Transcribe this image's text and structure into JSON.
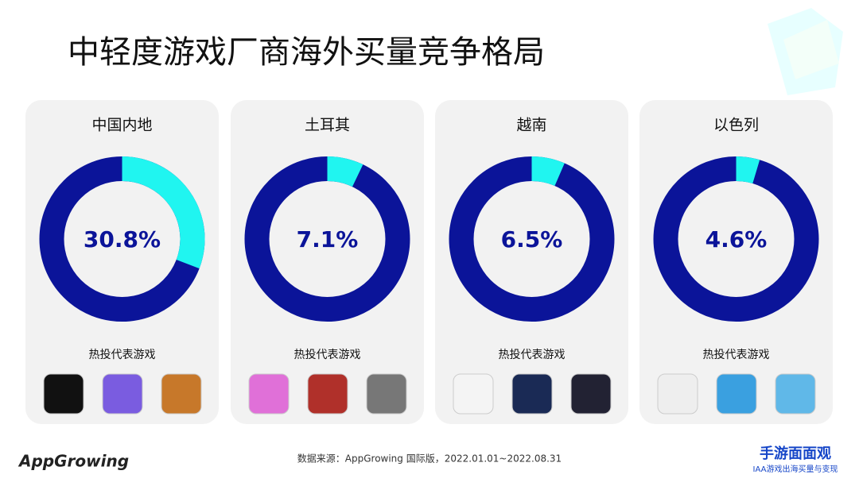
{
  "title": "中轻度游戏厂商海外买量竞争格局",
  "chart_data": [
    {
      "type": "donut",
      "title": "中国内地",
      "values": [
        30.8
      ],
      "value_labels": [
        "30.8%"
      ],
      "color": "#20f5f0",
      "rest_color": "#0b1499",
      "subtitle": "热投代表游戏"
    },
    {
      "type": "donut",
      "title": "土耳其",
      "values": [
        7.1
      ],
      "value_labels": [
        "7.1%"
      ],
      "color": "#20f5f0",
      "rest_color": "#0b1499",
      "subtitle": "热投代表游戏"
    },
    {
      "type": "donut",
      "title": "越南",
      "values": [
        6.5
      ],
      "value_labels": [
        "6.5%"
      ],
      "color": "#20f5f0",
      "rest_color": "#0b1499",
      "subtitle": "热投代表游戏"
    },
    {
      "type": "donut",
      "title": "以色列",
      "values": [
        4.6
      ],
      "value_labels": [
        "4.6%"
      ],
      "color": "#20f5f0",
      "rest_color": "#0b1499",
      "subtitle": "热投代表游戏"
    }
  ],
  "source": "数据来源：AppGrowing 国际版，2022.01.01~2022.08.31",
  "brand_left": "AppGrowing",
  "brand_right": "手游面面观",
  "brand_right_sub": "IAA游戏出海买量与变现"
}
